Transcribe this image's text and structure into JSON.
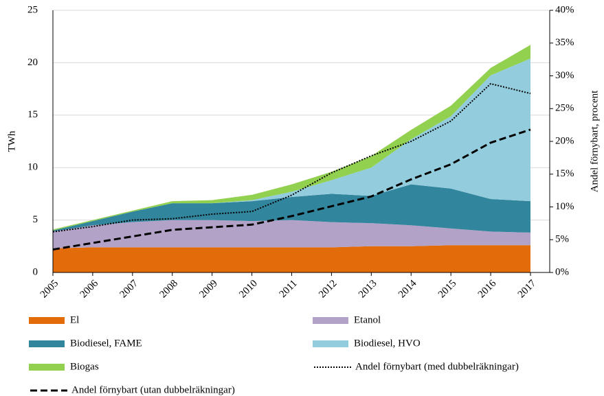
{
  "chart_data": {
    "type": "area",
    "y_label": "TWh",
    "y2_label": "Andel förnybart, procent",
    "categories": [
      "2005",
      "2006",
      "2007",
      "2008",
      "2009",
      "2010",
      "2011",
      "2012",
      "2013",
      "2014",
      "2015",
      "2016",
      "2017"
    ],
    "stacked": true,
    "grid": true,
    "legend": "bottom",
    "ylim": [
      0,
      25
    ],
    "yticks": [
      0,
      5,
      10,
      15,
      20,
      25
    ],
    "y2lim": [
      0,
      40
    ],
    "y2ticks": [
      {
        "value": 0,
        "label": "0%"
      },
      {
        "value": 5,
        "label": "5%"
      },
      {
        "value": 10,
        "label": "10%"
      },
      {
        "value": 15,
        "label": "15%"
      },
      {
        "value": 20,
        "label": "20%"
      },
      {
        "value": 25,
        "label": "25%"
      },
      {
        "value": 30,
        "label": "30%"
      },
      {
        "value": 35,
        "label": "35%"
      },
      {
        "value": 40,
        "label": "40%"
      }
    ],
    "series": [
      {
        "name": "El",
        "color": "#e36c0a",
        "values": [
          2.3,
          2.4,
          2.4,
          2.4,
          2.4,
          2.4,
          2.4,
          2.4,
          2.5,
          2.5,
          2.6,
          2.6,
          2.6
        ]
      },
      {
        "name": "Etanol",
        "color": "#b3a2c7",
        "values": [
          1.6,
          2.1,
          2.4,
          2.6,
          2.6,
          2.5,
          2.6,
          2.4,
          2.2,
          2.0,
          1.6,
          1.3,
          1.2
        ]
      },
      {
        "name": "Biodiesel, FAME",
        "color": "#31859c",
        "values": [
          0.1,
          0.4,
          1.0,
          1.6,
          1.6,
          1.9,
          2.2,
          2.7,
          2.6,
          3.9,
          3.8,
          3.1,
          3.0
        ]
      },
      {
        "name": "Biodiesel, HVO",
        "color": "#93cddd",
        "values": [
          0,
          0,
          0,
          0,
          0,
          0.1,
          0.5,
          1.3,
          2.7,
          4.3,
          6.9,
          11.8,
          13.6
        ]
      },
      {
        "name": "Biogas",
        "color": "#92d050",
        "values": [
          0.1,
          0.1,
          0.1,
          0.2,
          0.3,
          0.5,
          0.7,
          0.8,
          1.1,
          0.9,
          1.0,
          0.7,
          1.3
        ]
      },
      {
        "name": "Andel förnybart (med dubbelräkningar)",
        "color": "#000000",
        "axis": "y2",
        "line_style": "dotted",
        "values": [
          6.2,
          7.0,
          8.0,
          8.2,
          8.9,
          9.3,
          11.8,
          15.2,
          17.8,
          20.0,
          23.1,
          28.8,
          27.3
        ]
      },
      {
        "name": "Andel förnybart (utan dubbelräkningar)",
        "color": "#000000",
        "axis": "y2",
        "line_style": "dashed",
        "values": [
          3.5,
          4.5,
          5.5,
          6.5,
          6.9,
          7.3,
          8.6,
          10.1,
          11.6,
          14.2,
          16.5,
          19.8,
          21.8
        ]
      }
    ]
  }
}
